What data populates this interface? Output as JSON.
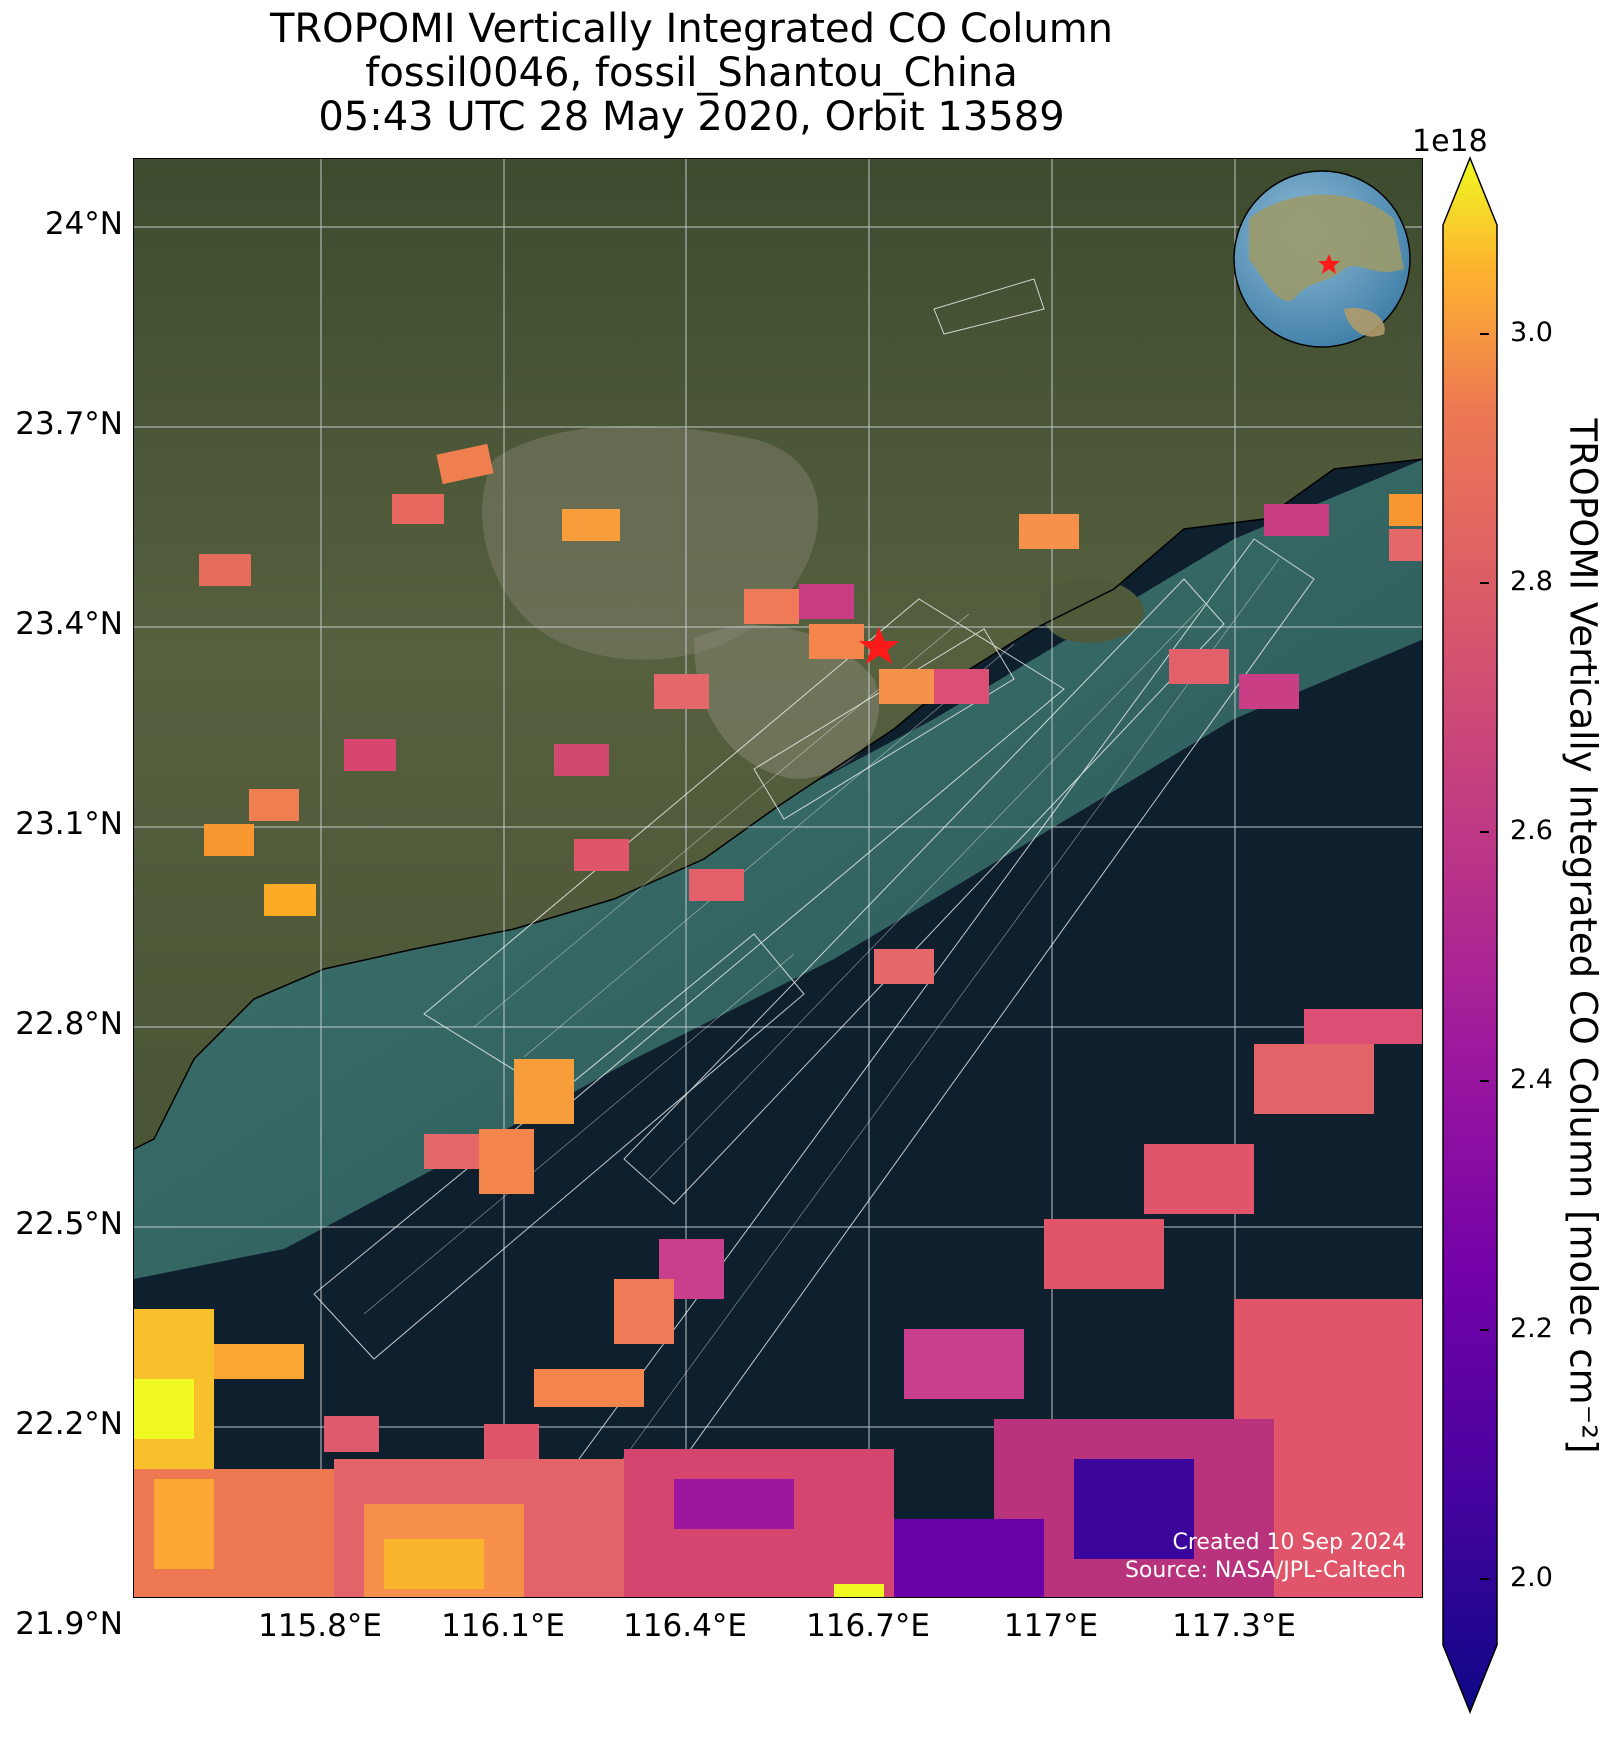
{
  "title": {
    "line1": "TROPOMI Vertically Integrated CO Column",
    "line2": "fossil0046, fossil_Shantou_China",
    "line3": "05:43 UTC 28 May 2020, Orbit 13589"
  },
  "map": {
    "lat_ticks": [
      "24°N",
      "23.7°N",
      "23.4°N",
      "23.1°N",
      "22.8°N",
      "22.5°N",
      "22.2°N",
      "21.9°N"
    ],
    "lon_ticks": [
      "115.8°E",
      "116.1°E",
      "116.4°E",
      "116.7°E",
      "117°E",
      "117.3°E"
    ],
    "credit_line1": "Created 10 Sep 2024",
    "credit_line2": "Source: NASA/JPL-Caltech",
    "site_marker": "red-star",
    "colors": {
      "land": "#4e5a3a",
      "ocean": "#0e1f2e",
      "coast_water": "#3f7a72",
      "grid": "#cfd6dc",
      "star": "#ff1a1a"
    }
  },
  "colorbar": {
    "exponent": "1e18",
    "label": "TROPOMI Vertically Integrated CO Column [molec cm⁻²]",
    "ticks": [
      "3.0",
      "2.8",
      "2.6",
      "2.4",
      "2.2",
      "2.0"
    ],
    "colormap": "plasma"
  }
}
